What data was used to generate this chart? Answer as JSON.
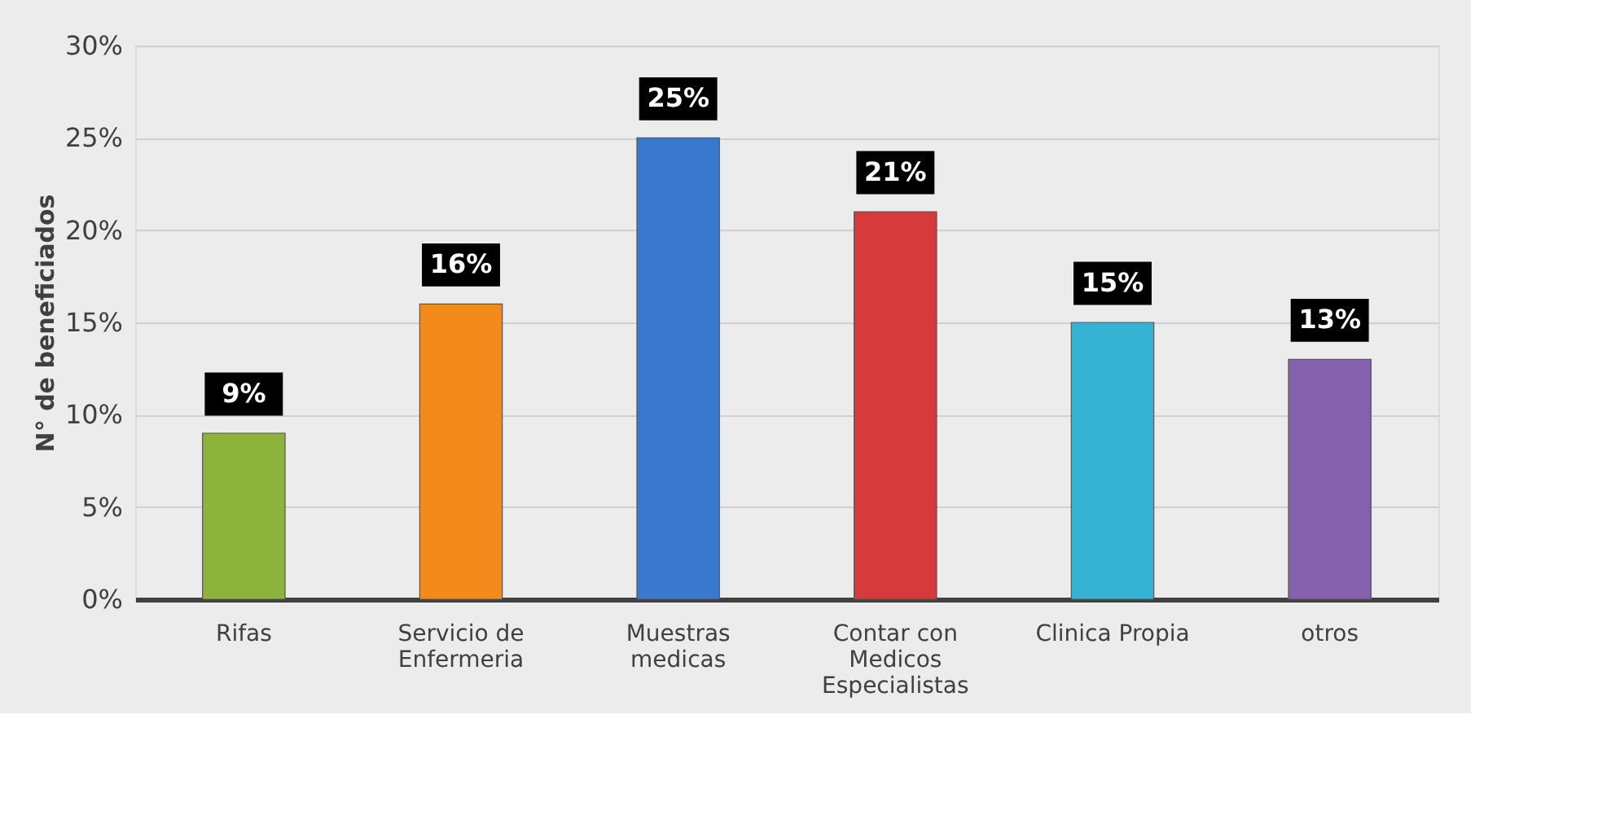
{
  "chart_data": {
    "type": "bar",
    "ylabel": "N° de beneficiados",
    "categories": [
      "Rifas",
      "Servicio de Enfermeria",
      "Muestras medicas",
      "Contar con Medicos Especialistas",
      "Clinica Propia",
      "otros"
    ],
    "values": [
      9,
      16,
      25,
      21,
      15,
      13
    ],
    "colors": [
      "#8db33a",
      "#f28a1c",
      "#3a78cf",
      "#d63a3a",
      "#36b3d3",
      "#8560ad"
    ],
    "value_labels": [
      "9%",
      "16%",
      "25%",
      "21%",
      "15%",
      "13%"
    ],
    "ylim": [
      0,
      30
    ],
    "yticks": [
      {
        "value": 0,
        "label": "0%"
      },
      {
        "value": 5,
        "label": "5%"
      },
      {
        "value": 10,
        "label": "10%"
      },
      {
        "value": 15,
        "label": "15%"
      },
      {
        "value": 20,
        "label": "20%"
      },
      {
        "value": 25,
        "label": "25%"
      },
      {
        "value": 30,
        "label": "30%"
      }
    ],
    "grid": "y"
  }
}
